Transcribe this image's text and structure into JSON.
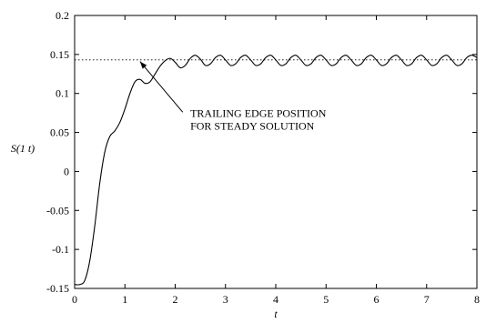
{
  "chart_data": {
    "type": "line",
    "title": "",
    "xlabel": "t",
    "ylabel": "S(1 t)",
    "xlim": [
      0,
      8
    ],
    "ylim": [
      -0.15,
      0.2
    ],
    "x_ticks": [
      0,
      1,
      2,
      3,
      4,
      5,
      6,
      7,
      8
    ],
    "x_tick_labels": [
      "0",
      "1",
      "2",
      "3",
      "4",
      "5",
      "6",
      "7",
      "8"
    ],
    "y_ticks": [
      -0.15,
      -0.1,
      -0.05,
      0,
      0.05,
      0.1,
      0.15,
      0.2
    ],
    "y_tick_labels": [
      "-0.15",
      "-0.1",
      "-0.05",
      "0",
      "0.05",
      "0.1",
      "0.15",
      "0.2"
    ],
    "grid": false,
    "series": [
      {
        "style": "solid",
        "x": [
          0,
          0.1,
          0.2,
          0.3,
          0.4,
          0.5,
          0.6,
          0.7,
          0.8,
          0.9,
          1.0,
          1.1,
          1.2,
          1.3,
          1.4,
          1.5,
          1.6,
          1.7,
          1.8,
          1.9,
          2.0,
          2.1,
          2.2,
          2.3,
          2.4,
          2.5,
          2.6,
          2.7,
          2.8,
          2.9,
          3.0,
          3.1,
          3.2,
          3.3,
          3.4,
          3.5,
          3.6,
          3.7,
          3.8,
          3.9,
          4.0,
          4.1,
          4.2,
          4.3,
          4.4,
          4.5,
          4.6,
          4.7,
          4.8,
          4.9,
          5.0,
          5.1,
          5.2,
          5.3,
          5.4,
          5.5,
          5.6,
          5.7,
          5.8,
          5.9,
          6.0,
          6.1,
          6.2,
          6.3,
          6.4,
          6.5,
          6.6,
          6.7,
          6.8,
          6.9,
          7.0,
          7.1,
          7.2,
          7.3,
          7.4,
          7.5,
          7.6,
          7.7,
          7.8,
          7.9,
          8.0
        ],
        "y": [
          -0.145,
          -0.145,
          -0.14,
          -0.115,
          -0.07,
          -0.015,
          0.025,
          0.045,
          0.052,
          0.063,
          0.08,
          0.1,
          0.115,
          0.118,
          0.113,
          0.115,
          0.125,
          0.135,
          0.142,
          0.145,
          0.14,
          0.133,
          0.136,
          0.145,
          0.149,
          0.144,
          0.136,
          0.138,
          0.146,
          0.149,
          0.143,
          0.136,
          0.138,
          0.146,
          0.149,
          0.143,
          0.136,
          0.138,
          0.146,
          0.149,
          0.143,
          0.136,
          0.138,
          0.146,
          0.149,
          0.143,
          0.136,
          0.138,
          0.146,
          0.149,
          0.143,
          0.136,
          0.138,
          0.146,
          0.149,
          0.143,
          0.136,
          0.138,
          0.146,
          0.149,
          0.143,
          0.136,
          0.138,
          0.146,
          0.149,
          0.143,
          0.136,
          0.138,
          0.146,
          0.149,
          0.143,
          0.136,
          0.138,
          0.146,
          0.149,
          0.143,
          0.136,
          0.138,
          0.146,
          0.149,
          0.146
        ]
      },
      {
        "style": "dotted",
        "x": [
          0,
          8
        ],
        "y": [
          0.143,
          0.143
        ]
      }
    ],
    "annotations": [
      {
        "text_lines": [
          "TRAILING EDGE POSITION",
          "FOR STEADY SOLUTION"
        ],
        "arrow_from": [
          2.15,
          0.076
        ],
        "arrow_to": [
          1.3,
          0.141
        ],
        "text_anchor": [
          2.3,
          0.07
        ]
      }
    ]
  }
}
